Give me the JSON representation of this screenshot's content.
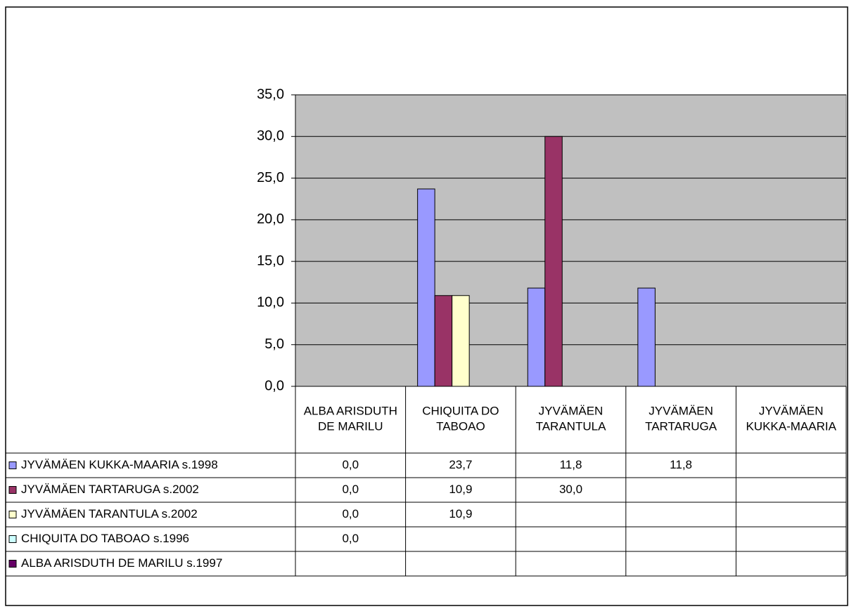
{
  "chart_data": {
    "type": "bar",
    "categories": [
      "ALBA ARISDUTH DE MARILU",
      "CHIQUITA DO TABOAO",
      "JYVÄMÄEN TARANTULA",
      "JYVÄMÄEN TARTARUGA",
      "JYVÄMÄEN KUKKA-MAARIA"
    ],
    "series": [
      {
        "name": "JYVÄMÄEN KUKKA-MAARIA s.1998",
        "color": "#9999ff",
        "values": [
          0,
          23.7,
          11.8,
          11.8,
          null
        ],
        "value_labels": [
          "0,0",
          "23,7",
          "11,8",
          "11,8",
          null
        ]
      },
      {
        "name": "JYVÄMÄEN TARTARUGA s.2002",
        "color": "#993366",
        "values": [
          0,
          10.9,
          30.0,
          null,
          null
        ],
        "value_labels": [
          "0,0",
          "10,9",
          "30,0",
          null,
          null
        ]
      },
      {
        "name": "JYVÄMÄEN TARANTULA s.2002",
        "color": "#ffffcc",
        "values": [
          0,
          10.9,
          null,
          null,
          null
        ],
        "value_labels": [
          "0,0",
          "10,9",
          null,
          null,
          null
        ]
      },
      {
        "name": "CHIQUITA DO TABOAO s.1996",
        "color": "#ccffff",
        "values": [
          0,
          null,
          null,
          null,
          null
        ],
        "value_labels": [
          "0,0",
          null,
          null,
          null,
          null
        ]
      },
      {
        "name": "ALBA ARISDUTH DE MARILU s.1997",
        "color": "#660066",
        "values": [
          null,
          null,
          null,
          null,
          null
        ],
        "value_labels": [
          null,
          null,
          null,
          null,
          null
        ]
      }
    ],
    "ylim": [
      0,
      35
    ],
    "yticks": [
      {
        "value": 0,
        "label": "0,0"
      },
      {
        "value": 5,
        "label": "5,0"
      },
      {
        "value": 10,
        "label": "10,0"
      },
      {
        "value": 15,
        "label": "15,0"
      },
      {
        "value": 20,
        "label": "20,0"
      },
      {
        "value": 25,
        "label": "25,0"
      },
      {
        "value": 30,
        "label": "30,0"
      },
      {
        "value": 35,
        "label": "35,0"
      }
    ],
    "grid": true,
    "plot_background": "#c0c0c0"
  }
}
